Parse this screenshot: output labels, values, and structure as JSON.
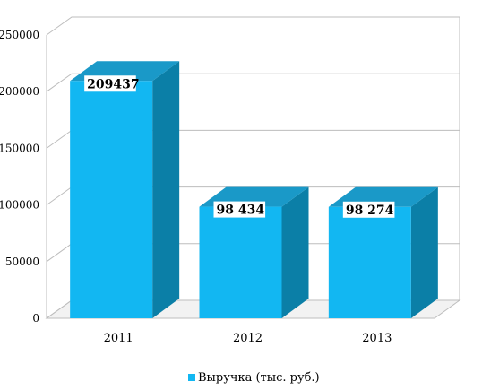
{
  "chart_data": {
    "type": "bar",
    "categories": [
      "2011",
      "2012",
      "2013"
    ],
    "series": [
      {
        "name": "Выручка (тыс. руб.)",
        "values": [
          209437,
          98434,
          98274
        ],
        "labels": [
          "209437",
          "98 434",
          "98 274"
        ]
      }
    ],
    "yticks": [
      "0",
      "50000",
      "100000",
      "150000",
      "200000",
      "250000"
    ],
    "ylim": [
      0,
      250000
    ],
    "grid": true,
    "legend": "bottom",
    "colors": {
      "front": "#12b7f2",
      "side": "#0b7fa7",
      "top": "#1a99c8",
      "floor": "#f2f2f2"
    }
  }
}
